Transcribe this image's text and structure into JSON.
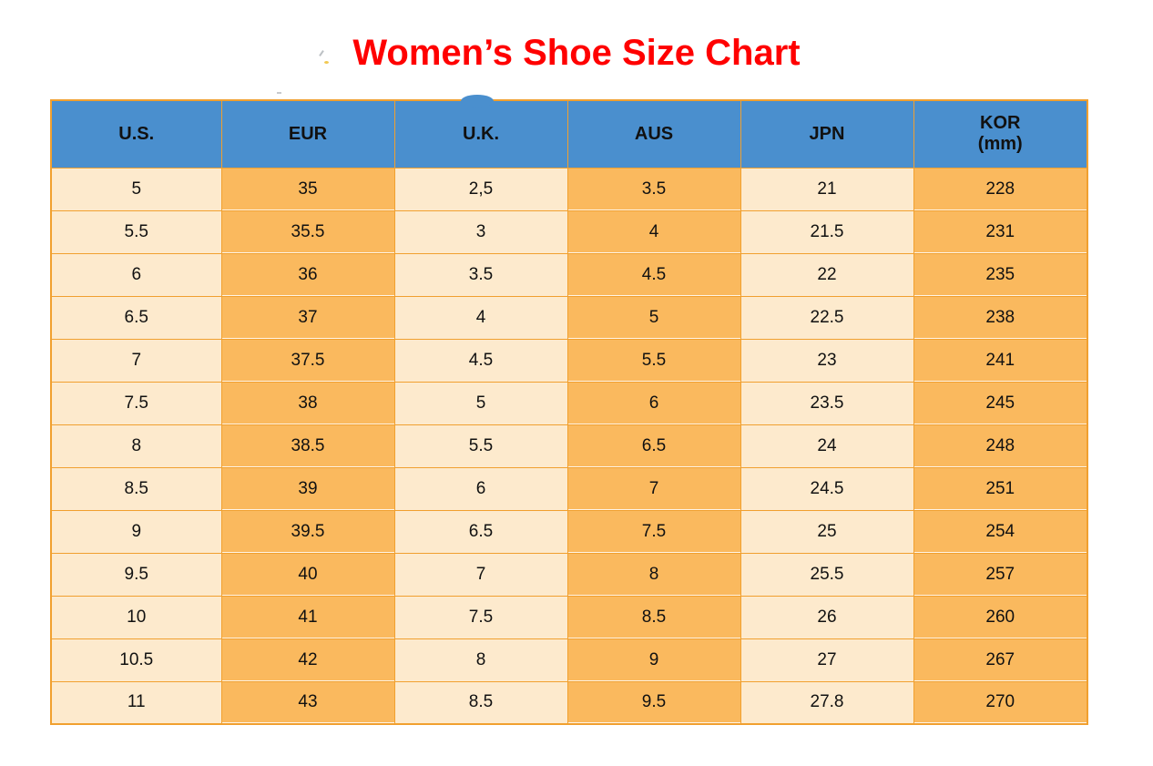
{
  "title": "Women’s Shoe Size Chart",
  "colors": {
    "title_red": "#ff0000",
    "header_blue": "#4a8fce",
    "cell_light": "#fdeacd",
    "cell_orange": "#fab95e",
    "border_orange": "#f1a02f",
    "text": "#111111"
  },
  "table": {
    "headers": [
      {
        "label": "U.S."
      },
      {
        "label": "EUR"
      },
      {
        "label": "U.K."
      },
      {
        "label": "AUS"
      },
      {
        "label": "JPN"
      },
      {
        "label": "KOR",
        "sublabel": "(mm)"
      }
    ]
  },
  "chart_data": {
    "type": "table",
    "title": "Women’s Shoe Size Chart",
    "columns": [
      "U.S.",
      "EUR",
      "U.K.",
      "AUS",
      "JPN",
      "KOR (mm)"
    ],
    "rows": [
      [
        "5",
        "35",
        "2,5",
        "3.5",
        "21",
        "228"
      ],
      [
        "5.5",
        "35.5",
        "3",
        "4",
        "21.5",
        "231"
      ],
      [
        "6",
        "36",
        "3.5",
        "4.5",
        "22",
        "235"
      ],
      [
        "6.5",
        "37",
        "4",
        "5",
        "22.5",
        "238"
      ],
      [
        "7",
        "37.5",
        "4.5",
        "5.5",
        "23",
        "241"
      ],
      [
        "7.5",
        "38",
        "5",
        "6",
        "23.5",
        "245"
      ],
      [
        "8",
        "38.5",
        "5.5",
        "6.5",
        "24",
        "248"
      ],
      [
        "8.5",
        "39",
        "6",
        "7",
        "24.5",
        "251"
      ],
      [
        "9",
        "39.5",
        "6.5",
        "7.5",
        "25",
        "254"
      ],
      [
        "9.5",
        "40",
        "7",
        "8",
        "25.5",
        "257"
      ],
      [
        "10",
        "41",
        "7.5",
        "8.5",
        "26",
        "260"
      ],
      [
        "10.5",
        "42",
        "8",
        "9",
        "27",
        "267"
      ],
      [
        "11",
        "43",
        "8.5",
        "9.5",
        "27.8",
        "270"
      ]
    ],
    "layout": {
      "column_fill_pattern": [
        "light",
        "orange",
        "light",
        "orange",
        "light",
        "orange"
      ],
      "header_fill": "blue",
      "grid": true
    }
  }
}
